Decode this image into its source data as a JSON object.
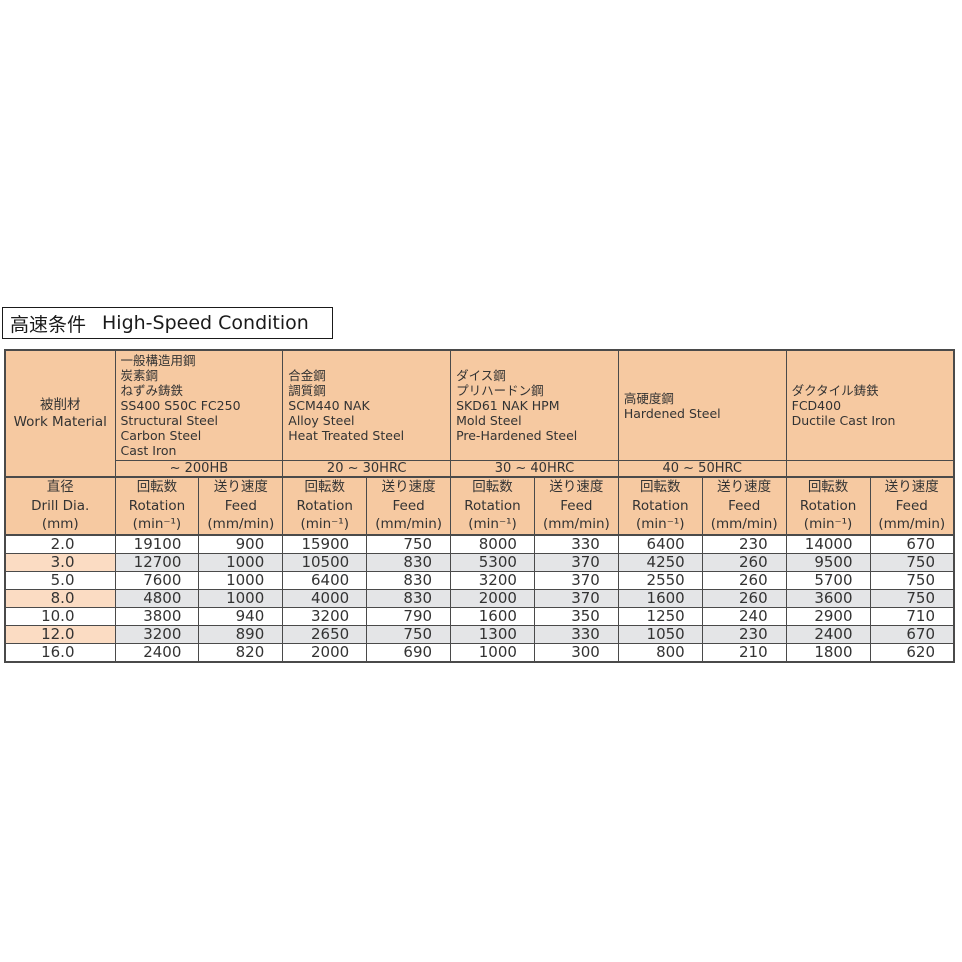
{
  "colors": {
    "header_bg": "#F6C9A1",
    "highlight_dia": "#FBDCC3",
    "highlight_data": "#E4E5E7",
    "border": "#4a4a4a",
    "text": "#333333"
  },
  "title": {
    "jp": "高速条件",
    "en": "High-Speed Condition"
  },
  "table": {
    "work_material": {
      "jp": "被削材",
      "en": "Work Material"
    },
    "materials": [
      {
        "lines": [
          "一般構造用鋼",
          "炭素鋼",
          "ねずみ鋳鉄",
          "SS400 S50C FC250",
          "Structural Steel",
          "Carbon Steel",
          "Cast Iron"
        ],
        "hardness": "~ 200HB"
      },
      {
        "lines": [
          "合金鋼",
          "調質鋼",
          "SCM440 NAK",
          "Alloy Steel",
          "Heat Treated Steel"
        ],
        "hardness": "20 ~ 30HRC"
      },
      {
        "lines": [
          "ダイス鋼",
          "プリハードン鋼",
          "SKD61 NAK HPM",
          "Mold Steel",
          "Pre-Hardened Steel"
        ],
        "hardness": "30 ~ 40HRC"
      },
      {
        "lines": [
          "高硬度鋼",
          "Hardened Steel"
        ],
        "hardness": "40 ~ 50HRC"
      },
      {
        "lines": [
          "ダクタイル鋳鉄",
          "FCD400",
          "Ductile Cast Iron"
        ],
        "hardness": ""
      }
    ],
    "subheaders": {
      "dia": [
        "直径",
        "Drill Dia.",
        "(mm)"
      ],
      "rotation": [
        "回転数",
        "Rotation",
        "(min⁻¹)"
      ],
      "feed": [
        "送り速度",
        "Feed",
        "(mm/min)"
      ]
    },
    "rows": [
      {
        "dia": "2.0",
        "highlight": false,
        "values": [
          "19100",
          "900",
          "15900",
          "750",
          "8000",
          "330",
          "6400",
          "230",
          "14000",
          "670"
        ]
      },
      {
        "dia": "3.0",
        "highlight": true,
        "values": [
          "12700",
          "1000",
          "10500",
          "830",
          "5300",
          "370",
          "4250",
          "260",
          "9500",
          "750"
        ]
      },
      {
        "dia": "5.0",
        "highlight": false,
        "values": [
          "7600",
          "1000",
          "6400",
          "830",
          "3200",
          "370",
          "2550",
          "260",
          "5700",
          "750"
        ]
      },
      {
        "dia": "8.0",
        "highlight": true,
        "values": [
          "4800",
          "1000",
          "4000",
          "830",
          "2000",
          "370",
          "1600",
          "260",
          "3600",
          "750"
        ]
      },
      {
        "dia": "10.0",
        "highlight": false,
        "values": [
          "3800",
          "940",
          "3200",
          "790",
          "1600",
          "350",
          "1250",
          "240",
          "2900",
          "710"
        ]
      },
      {
        "dia": "12.0",
        "highlight": true,
        "values": [
          "3200",
          "890",
          "2650",
          "750",
          "1300",
          "330",
          "1050",
          "230",
          "2400",
          "670"
        ]
      },
      {
        "dia": "16.0",
        "highlight": false,
        "values": [
          "2400",
          "820",
          "2000",
          "690",
          "1000",
          "300",
          "800",
          "210",
          "1800",
          "620"
        ]
      }
    ]
  }
}
